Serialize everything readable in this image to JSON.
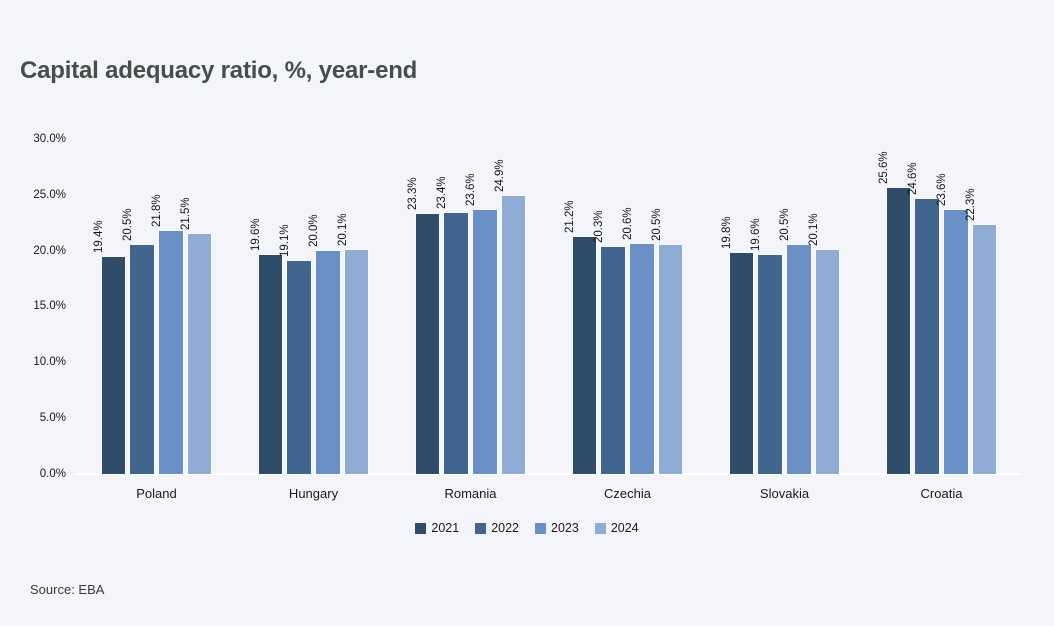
{
  "title": "Capital adequacy ratio, %, year-end",
  "source": "Source: EBA",
  "colors": {
    "background": "#F4F5FA",
    "title_text": "#484D4A",
    "label_text": "#1A1A1A",
    "axis_line": "#FFFFFF"
  },
  "chart_data": {
    "type": "bar",
    "title": "Capital adequacy ratio, %, year-end",
    "categories": [
      "Poland",
      "Hungary",
      "Romania",
      "Czechia",
      "Slovakia",
      "Croatia"
    ],
    "series": [
      {
        "name": "2021",
        "color": "#2F4D6B",
        "values": [
          19.4,
          19.6,
          23.3,
          21.2,
          19.8,
          25.6
        ]
      },
      {
        "name": "2022",
        "color": "#40658F",
        "values": [
          20.5,
          19.1,
          23.4,
          20.3,
          19.6,
          24.6
        ]
      },
      {
        "name": "2023",
        "color": "#6B90C5",
        "values": [
          21.8,
          20.0,
          23.6,
          20.6,
          20.5,
          23.6
        ]
      },
      {
        "name": "2024",
        "color": "#8FACD4",
        "values": [
          21.5,
          20.1,
          24.9,
          20.5,
          20.1,
          22.3
        ]
      }
    ],
    "value_label_suffix": "%",
    "value_label_decimals": 1,
    "xlabel": "",
    "ylabel": "",
    "y_axis": {
      "min": 0,
      "max": 30,
      "step": 5,
      "tick_labels": [
        "0.0%",
        "5.0%",
        "10.0%",
        "15.0%",
        "20.0%",
        "25.0%",
        "30.0%"
      ]
    },
    "grid": false,
    "legend_position": "bottom",
    "bar_labels_rotated_degrees": -90
  }
}
